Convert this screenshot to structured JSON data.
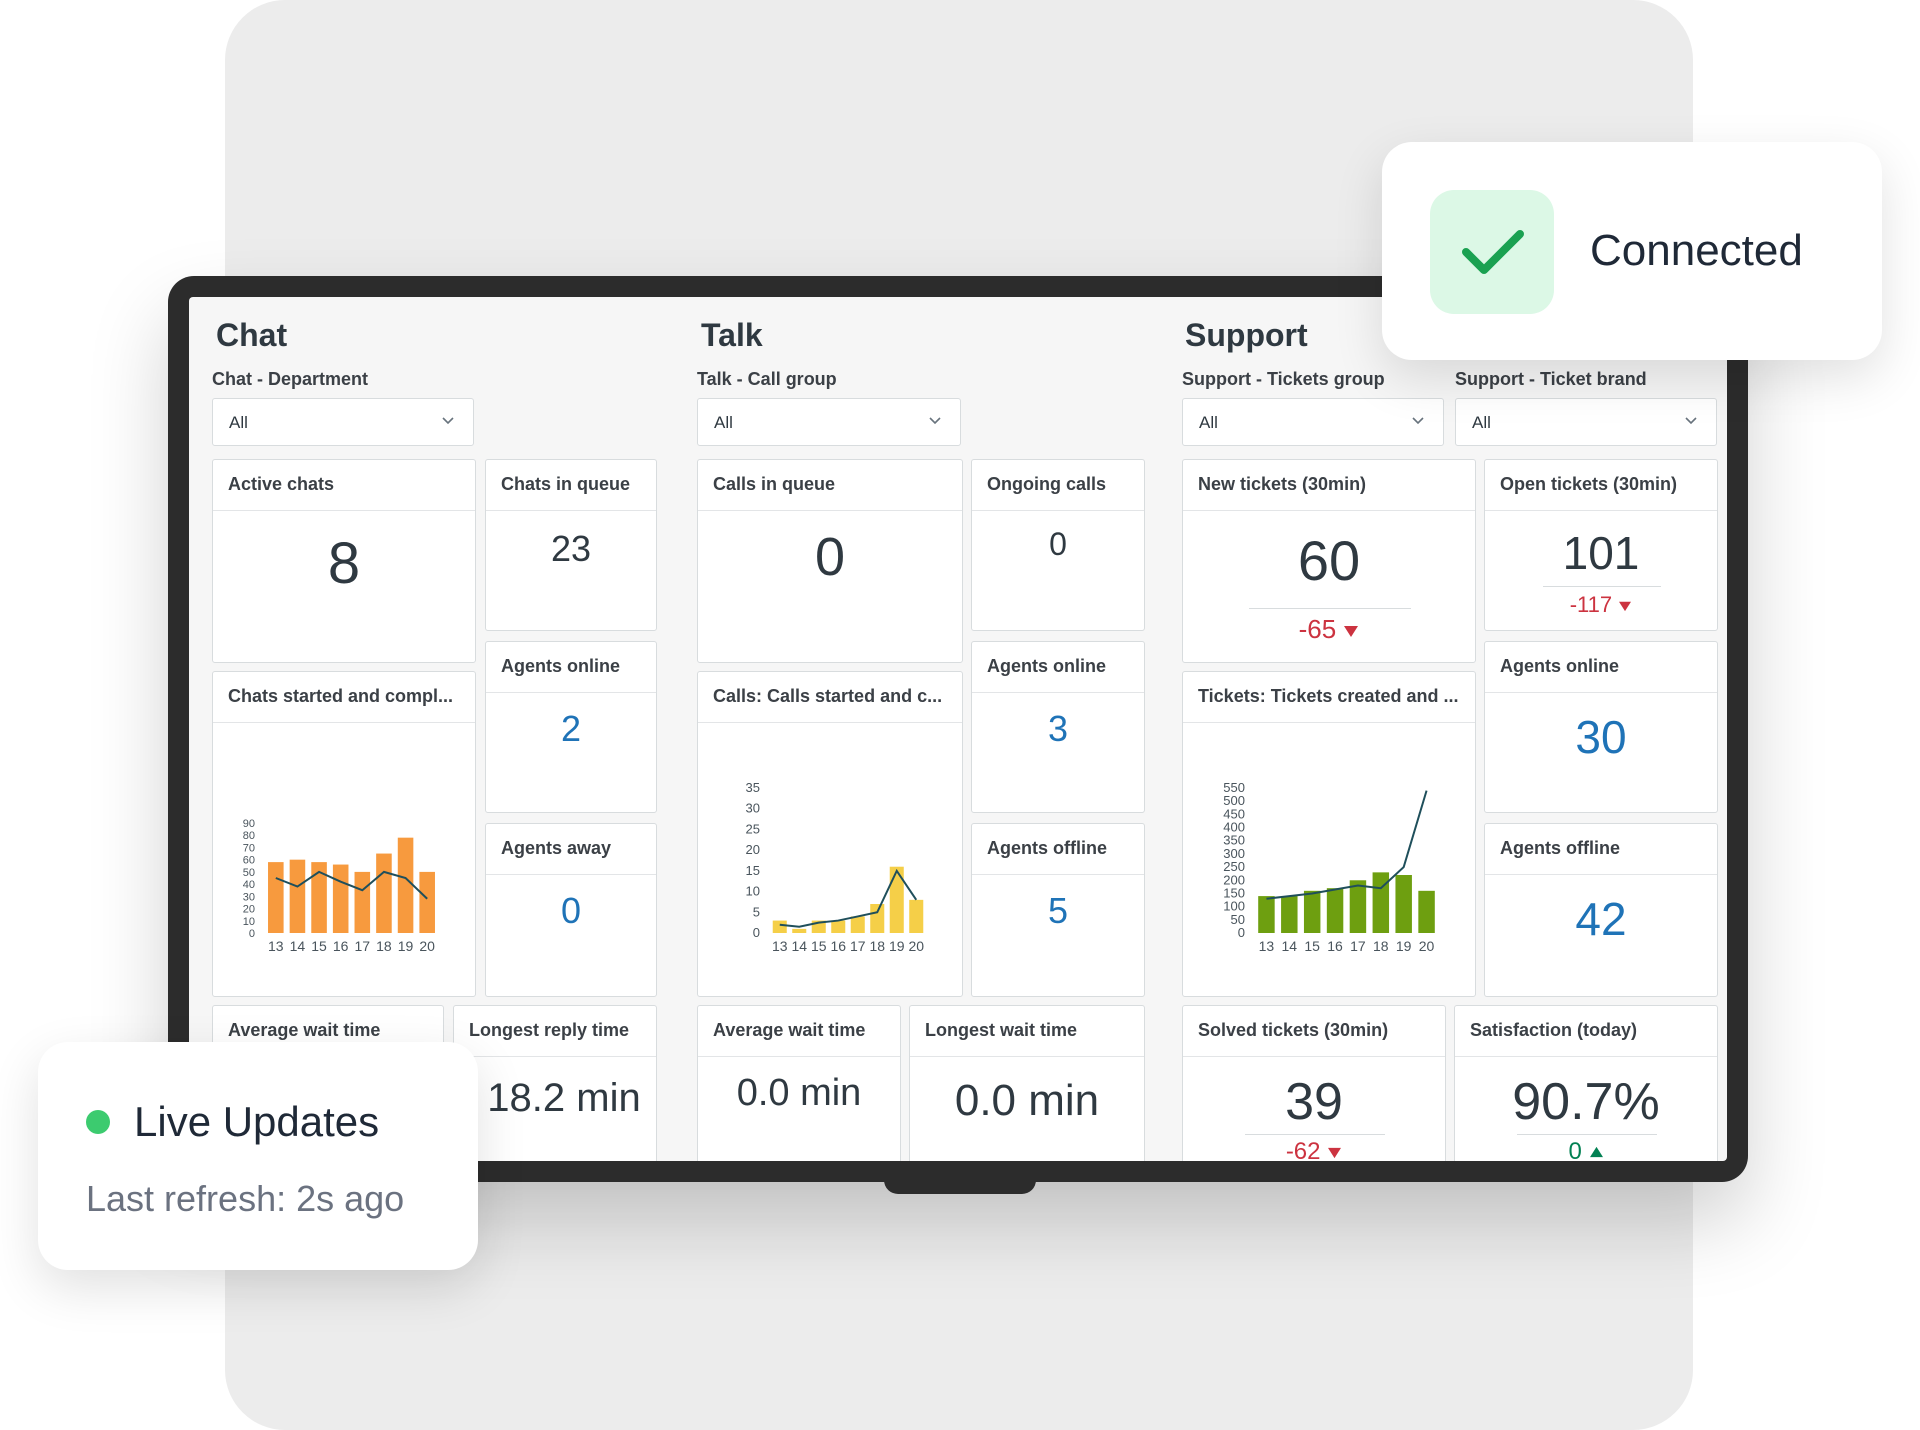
{
  "overlay_connected": {
    "label": "Connected",
    "icon": "check-icon"
  },
  "overlay_live": {
    "title": "Live Updates",
    "subtitle": "Last refresh: 2s ago",
    "icon": "green-dot-icon"
  },
  "chat": {
    "title": "Chat",
    "filter_label": "Chat - Department",
    "filter_value": "All",
    "active_chats": {
      "title": "Active chats",
      "value": "8"
    },
    "chats_in_queue": {
      "title": "Chats in queue",
      "value": "23"
    },
    "agents_online": {
      "title": "Agents online",
      "value": "2"
    },
    "agents_away": {
      "title": "Agents away",
      "value": "0"
    },
    "chart_title": "Chats started and compl...",
    "avg_wait": {
      "title": "Average wait time"
    },
    "longest_reply": {
      "title": "Longest reply time",
      "value": "18.2 min"
    }
  },
  "talk": {
    "title": "Talk",
    "filter_label": "Talk - Call group",
    "filter_value": "All",
    "calls_in_queue": {
      "title": "Calls in queue",
      "value": "0"
    },
    "ongoing_calls": {
      "title": "Ongoing calls",
      "value": "0"
    },
    "agents_online": {
      "title": "Agents online",
      "value": "3"
    },
    "agents_offline": {
      "title": "Agents offline",
      "value": "5"
    },
    "chart_title": "Calls: Calls started and c...",
    "avg_wait": {
      "title": "Average wait time",
      "value": "0.0 min"
    },
    "longest_wait": {
      "title": "Longest wait time",
      "value": "0.0 min"
    }
  },
  "support": {
    "title": "Support",
    "group_label": "Support - Tickets group",
    "group_value": "All",
    "brand_label": "Support - Ticket brand",
    "brand_value": "All",
    "new_tickets": {
      "title": "New tickets (30min)",
      "value": "60",
      "delta": "-65",
      "delta_icon": "triangle-down-icon"
    },
    "open_tickets": {
      "title": "Open tickets (30min)",
      "value": "101",
      "delta": "-117",
      "delta_icon": "triangle-down-icon"
    },
    "agents_online": {
      "title": "Agents online",
      "value": "30"
    },
    "agents_offline": {
      "title": "Agents offline",
      "value": "42"
    },
    "chart_title": "Tickets: Tickets created and ...",
    "solved_tickets": {
      "title": "Solved tickets (30min)",
      "value": "39",
      "delta": "-62",
      "delta_icon": "triangle-down-icon"
    },
    "satisfaction": {
      "title": "Satisfaction (today)",
      "value": "90.7%",
      "delta": "0",
      "delta_icon": "triangle-up-icon"
    }
  },
  "colors": {
    "chat_bar": "#f79a3e",
    "talk_bar": "#f5cf48",
    "support_bar": "#6e9f10",
    "line": "#1f4f5b",
    "accent_blue": "#1f73b7"
  },
  "chart_data": [
    {
      "type": "bar",
      "title": "Chats started and compl...",
      "categories": [
        "13",
        "14",
        "15",
        "16",
        "17",
        "18",
        "19",
        "20"
      ],
      "series": [
        {
          "values": [
            58,
            60,
            58,
            56,
            50,
            65,
            78,
            50
          ]
        },
        {
          "type": "line",
          "values": [
            45,
            38,
            50,
            42,
            35,
            50,
            45,
            28
          ]
        }
      ],
      "ylim": [
        0,
        90
      ],
      "yticks": [
        0,
        10,
        20,
        30,
        40,
        50,
        60,
        70,
        80,
        90
      ]
    },
    {
      "type": "bar",
      "title": "Calls: Calls started and c...",
      "categories": [
        "13",
        "14",
        "15",
        "16",
        "17",
        "18",
        "19",
        "20"
      ],
      "series": [
        {
          "values": [
            3,
            1,
            3,
            3,
            4,
            7,
            16,
            8
          ]
        },
        {
          "type": "line",
          "values": [
            2,
            1.5,
            2.5,
            3,
            4,
            5,
            15,
            8
          ]
        }
      ],
      "ylim": [
        0,
        35
      ],
      "yticks": [
        0,
        5,
        10,
        15,
        20,
        25,
        30,
        35
      ]
    },
    {
      "type": "bar",
      "title": "Tickets: Tickets created and ...",
      "categories": [
        "13",
        "14",
        "15",
        "16",
        "17",
        "18",
        "19",
        "20"
      ],
      "series": [
        {
          "values": [
            140,
            140,
            160,
            170,
            200,
            230,
            220,
            160
          ]
        },
        {
          "type": "line",
          "values": [
            130,
            140,
            150,
            165,
            180,
            170,
            250,
            540
          ]
        }
      ],
      "ylim": [
        0,
        550
      ],
      "yticks": [
        0,
        50,
        100,
        150,
        200,
        250,
        300,
        350,
        400,
        450,
        500,
        550
      ]
    }
  ]
}
